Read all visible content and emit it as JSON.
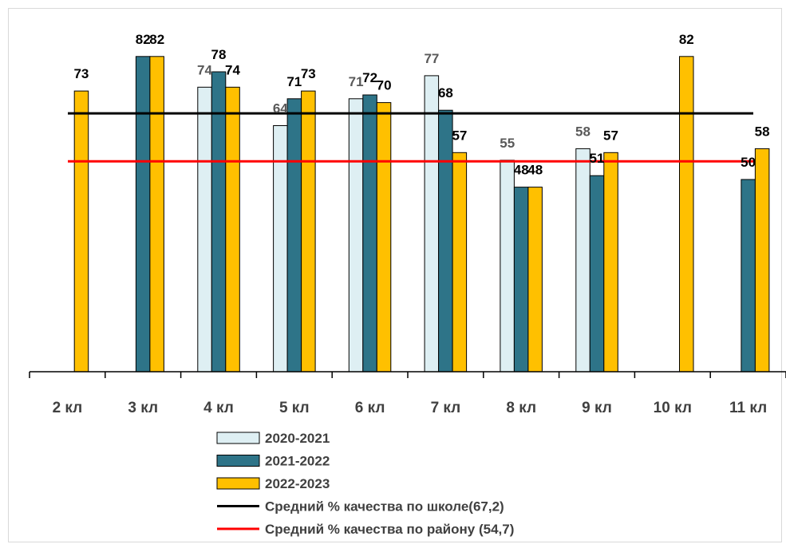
{
  "chart_data": {
    "type": "bar",
    "categories": [
      "2 кл",
      "3 кл",
      "4 кл",
      "5 кл",
      "6 кл",
      "7 кл",
      "8 кл",
      "9 кл",
      "10 кл",
      "11 кл"
    ],
    "series": [
      {
        "name": "2020-2021",
        "color": "#DEEFF3",
        "values": [
          null,
          null,
          74,
          64,
          71,
          77,
          55,
          58,
          null,
          null
        ]
      },
      {
        "name": "2021-2022",
        "color": "#2E7488",
        "values": [
          null,
          82,
          78,
          71,
          72,
          68,
          48,
          51,
          null,
          50
        ]
      },
      {
        "name": "2022-2023",
        "color": "#FFC000",
        "values": [
          73,
          82,
          74,
          73,
          70,
          57,
          48,
          57,
          82,
          58
        ]
      }
    ],
    "reference_lines": [
      {
        "name": "Средний % качества по школе(67,2)",
        "value": 67.2,
        "color": "#000000"
      },
      {
        "name": "Средний % качества по району (54,7)",
        "value": 54.7,
        "color": "#FF0000"
      }
    ],
    "ylim": [
      0,
      100
    ],
    "grid": false,
    "legend_position": "bottom",
    "title": "",
    "xlabel": "",
    "ylabel": ""
  }
}
